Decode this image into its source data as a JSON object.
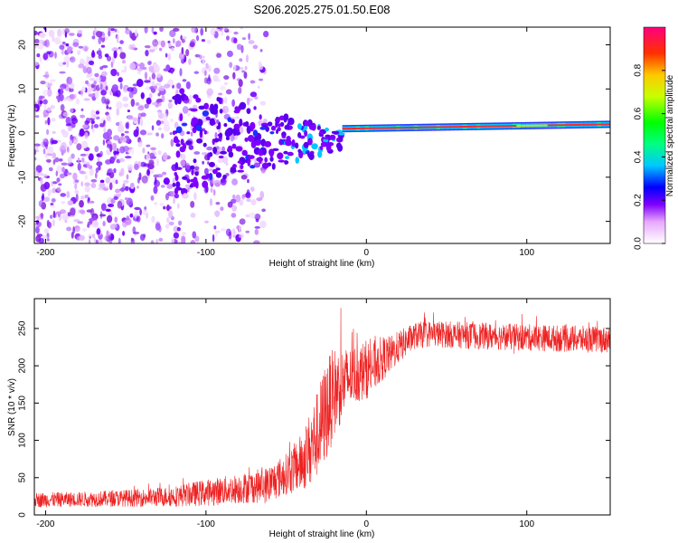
{
  "title": "S206.2025.275.01.50.E08",
  "chart_data": [
    {
      "type": "heatmap",
      "xlabel": "Height of straight line (km)",
      "ylabel": "Frequency (Hz)",
      "xlim": [
        -207,
        152
      ],
      "ylim": [
        -25,
        24
      ],
      "xticks": [
        -200,
        -100,
        0,
        100
      ],
      "yticks": [
        -20,
        -10,
        0,
        10,
        20
      ],
      "colorbar": {
        "label": "Normalized spectral amplitude",
        "range": [
          0,
          1
        ],
        "ticks": [
          0.0,
          0.2,
          0.4,
          0.6,
          0.8
        ]
      },
      "features": {
        "scatter_region_km": [
          -207,
          -62
        ],
        "transition_region_km": [
          -62,
          -15
        ],
        "steady_tone_region_km": [
          -15,
          152
        ],
        "tone_frequency_hz_start": 1.0,
        "tone_frequency_hz_end": 2.0
      }
    },
    {
      "type": "line",
      "xlabel": "Height of straight line (km)",
      "ylabel": "SNR (10 * v/v)",
      "xlim": [
        -207,
        152
      ],
      "ylim": [
        0,
        290
      ],
      "xticks": [
        -200,
        -100,
        0,
        100
      ],
      "yticks": [
        0,
        50,
        100,
        150,
        200,
        250
      ],
      "series": [
        {
          "name": "SNR",
          "color": "#ee2222",
          "x": [
            -207,
            -180,
            -160,
            -140,
            -120,
            -100,
            -80,
            -70,
            -62,
            -50,
            -40,
            -30,
            -25,
            -20,
            -15,
            -10,
            -5,
            0,
            5,
            10,
            15,
            20,
            30,
            40,
            50,
            70,
            100,
            130,
            152
          ],
          "y": [
            20,
            21,
            22,
            23,
            25,
            30,
            35,
            38,
            40,
            55,
            70,
            110,
            140,
            165,
            175,
            185,
            190,
            195,
            200,
            210,
            215,
            225,
            240,
            243,
            242,
            240,
            238,
            236,
            235
          ],
          "spread": [
            10,
            10,
            11,
            12,
            14,
            18,
            20,
            22,
            25,
            28,
            40,
            60,
            70,
            60,
            50,
            40,
            40,
            40,
            35,
            30,
            25,
            22,
            18,
            18,
            18,
            18,
            18,
            18,
            18
          ]
        }
      ]
    }
  ]
}
